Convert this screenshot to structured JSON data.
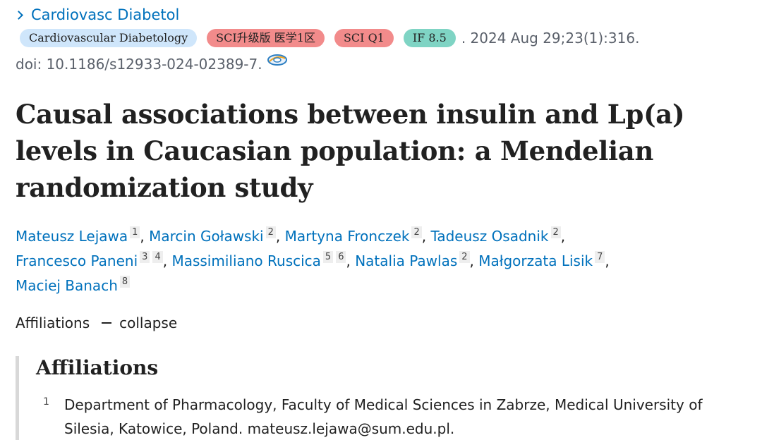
{
  "journal": {
    "link": "Cardiovasc Diabetol"
  },
  "badges": {
    "journal": "Cardiovascular Diabetology",
    "sci_upgrade": "SCI升级版 医学1区",
    "sci_q": "SCI Q1",
    "impact_factor": "IF 8.5"
  },
  "citation": {
    "text": ". 2024 Aug 29;23(1):316.",
    "doi": "doi: 10.1186/s12933-024-02389-7."
  },
  "article": {
    "title": "Causal associations between insulin and Lp(a) levels in Caucasian population: a Mendelian randomization study"
  },
  "authors": [
    {
      "name": "Mateusz Lejawa",
      "affs": [
        "1"
      ]
    },
    {
      "name": "Marcin Goławski",
      "affs": [
        "2"
      ]
    },
    {
      "name": "Martyna Fronczek",
      "affs": [
        "2"
      ]
    },
    {
      "name": "Tadeusz Osadnik",
      "affs": [
        "2"
      ]
    },
    {
      "name": "Francesco Paneni",
      "affs": [
        "3",
        "4"
      ]
    },
    {
      "name": "Massimiliano Ruscica",
      "affs": [
        "5",
        "6"
      ]
    },
    {
      "name": "Natalia Pawlas",
      "affs": [
        "2"
      ]
    },
    {
      "name": "Małgorzata Lisik",
      "affs": [
        "7"
      ]
    },
    {
      "name": "Maciej Banach",
      "affs": [
        "8"
      ]
    }
  ],
  "affiliations_toggle": {
    "label": "Affiliations",
    "action": "collapse"
  },
  "affiliations": {
    "heading": "Affiliations",
    "items": [
      {
        "num": "1",
        "text": "Department of Pharmacology, Faculty of Medical Sciences in Zabrze, Medical University of Silesia, Katowice, Poland. mateusz.lejawa@sum.edu.pl."
      }
    ]
  }
}
